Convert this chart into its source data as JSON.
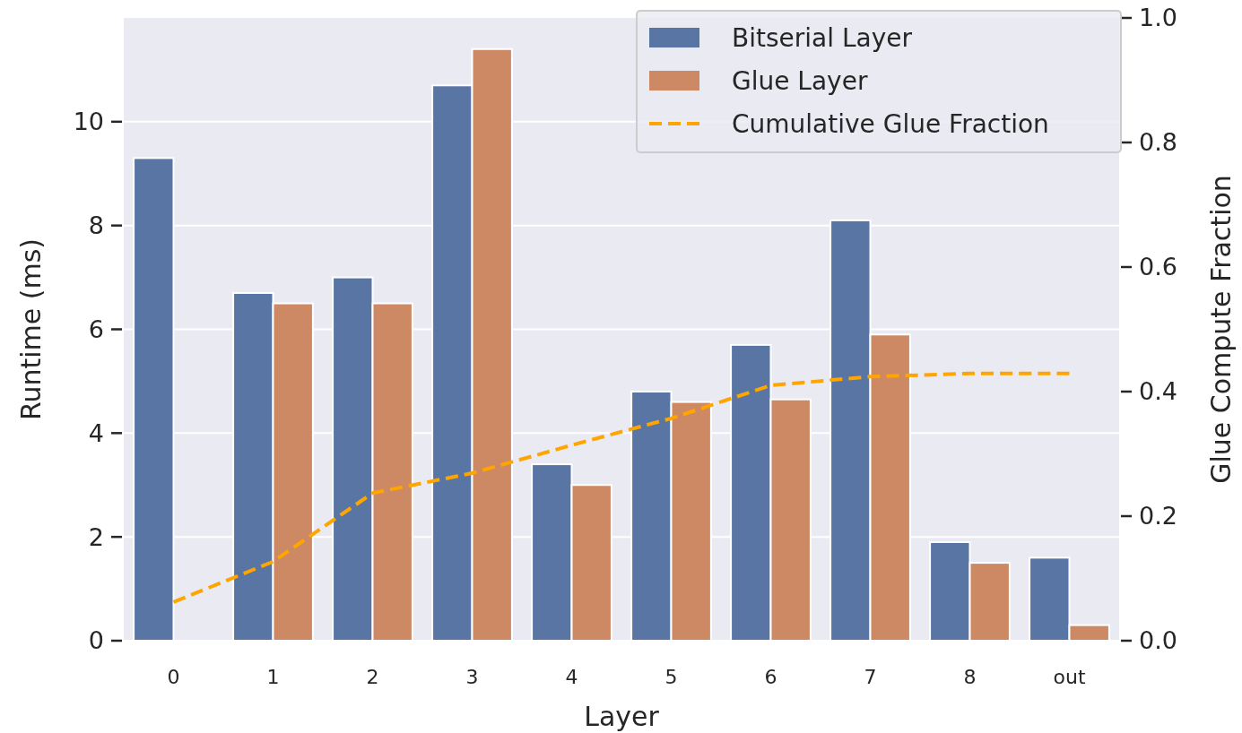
{
  "chart_data": {
    "type": "bar",
    "xlabel": "Layer",
    "ylabel": "Runtime (ms)",
    "y2label": "Glue Compute Fraction",
    "categories": [
      "0",
      "1",
      "2",
      "3",
      "4",
      "5",
      "6",
      "7",
      "8",
      "out"
    ],
    "series": [
      {
        "name": "Bitserial Layer",
        "color": "#5875a4",
        "values": [
          9.3,
          6.7,
          7.0,
          10.7,
          3.4,
          4.8,
          5.7,
          8.1,
          1.9,
          1.6
        ]
      },
      {
        "name": "Glue Layer",
        "color": "#cc8963",
        "values": [
          0,
          6.5,
          6.5,
          11.4,
          3.0,
          4.6,
          4.65,
          5.9,
          1.5,
          0.3
        ]
      },
      {
        "name": "Cumulative Glue Fraction",
        "type": "line",
        "axis": "y2",
        "color": "#ffa500",
        "line_style": "dashed",
        "values": [
          0.062,
          0.127,
          0.237,
          0.269,
          0.314,
          0.357,
          0.41,
          0.424,
          0.429,
          0.429
        ]
      }
    ],
    "ylim": [
      0,
      12
    ],
    "yticks": [
      0,
      2,
      4,
      6,
      8,
      10
    ],
    "y2lim": [
      0,
      1
    ],
    "y2ticks": [
      {
        "value": 0,
        "label": "0.0"
      },
      {
        "value": 0.2,
        "label": "0.2"
      },
      {
        "value": 0.4,
        "label": "0.4"
      },
      {
        "value": 0.6,
        "label": "0.6"
      },
      {
        "value": 0.8,
        "label": "0.8"
      },
      {
        "value": 1,
        "label": "1.0"
      }
    ],
    "grid": "y",
    "legend": "top right"
  }
}
